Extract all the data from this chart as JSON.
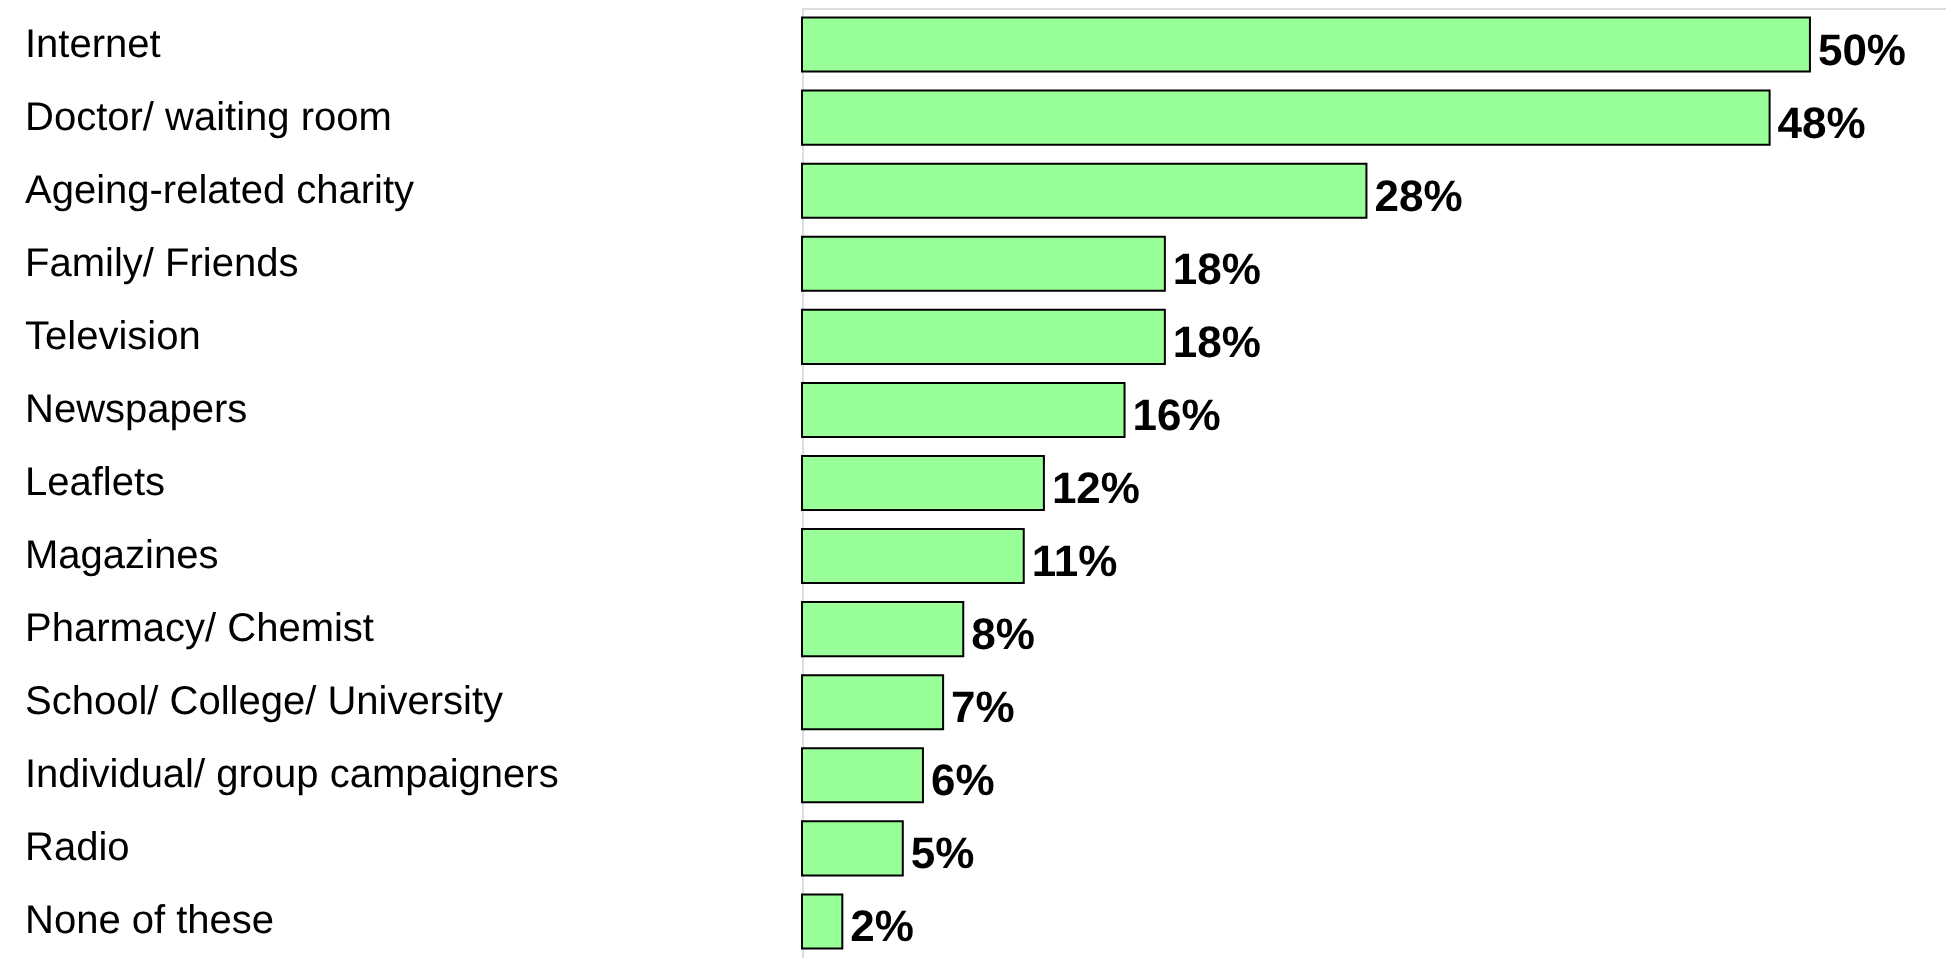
{
  "chart_data": {
    "type": "bar",
    "orientation": "horizontal",
    "categories": [
      "Internet",
      "Doctor/ waiting room",
      "Ageing-related charity",
      "Family/ Friends",
      "Television",
      "Newspapers",
      "Leaflets",
      "Magazines",
      "Pharmacy/ Chemist",
      "School/ College/ University",
      "Individual/ group campaigners",
      "Radio",
      "None of these"
    ],
    "values": [
      50,
      48,
      28,
      18,
      18,
      16,
      12,
      11,
      8,
      7,
      6,
      5,
      2
    ],
    "value_labels": [
      "50%",
      "48%",
      "28%",
      "18%",
      "18%",
      "16%",
      "12%",
      "11%",
      "8%",
      "7%",
      "6%",
      "5%",
      "2%"
    ],
    "color": "#99ff99"
  }
}
